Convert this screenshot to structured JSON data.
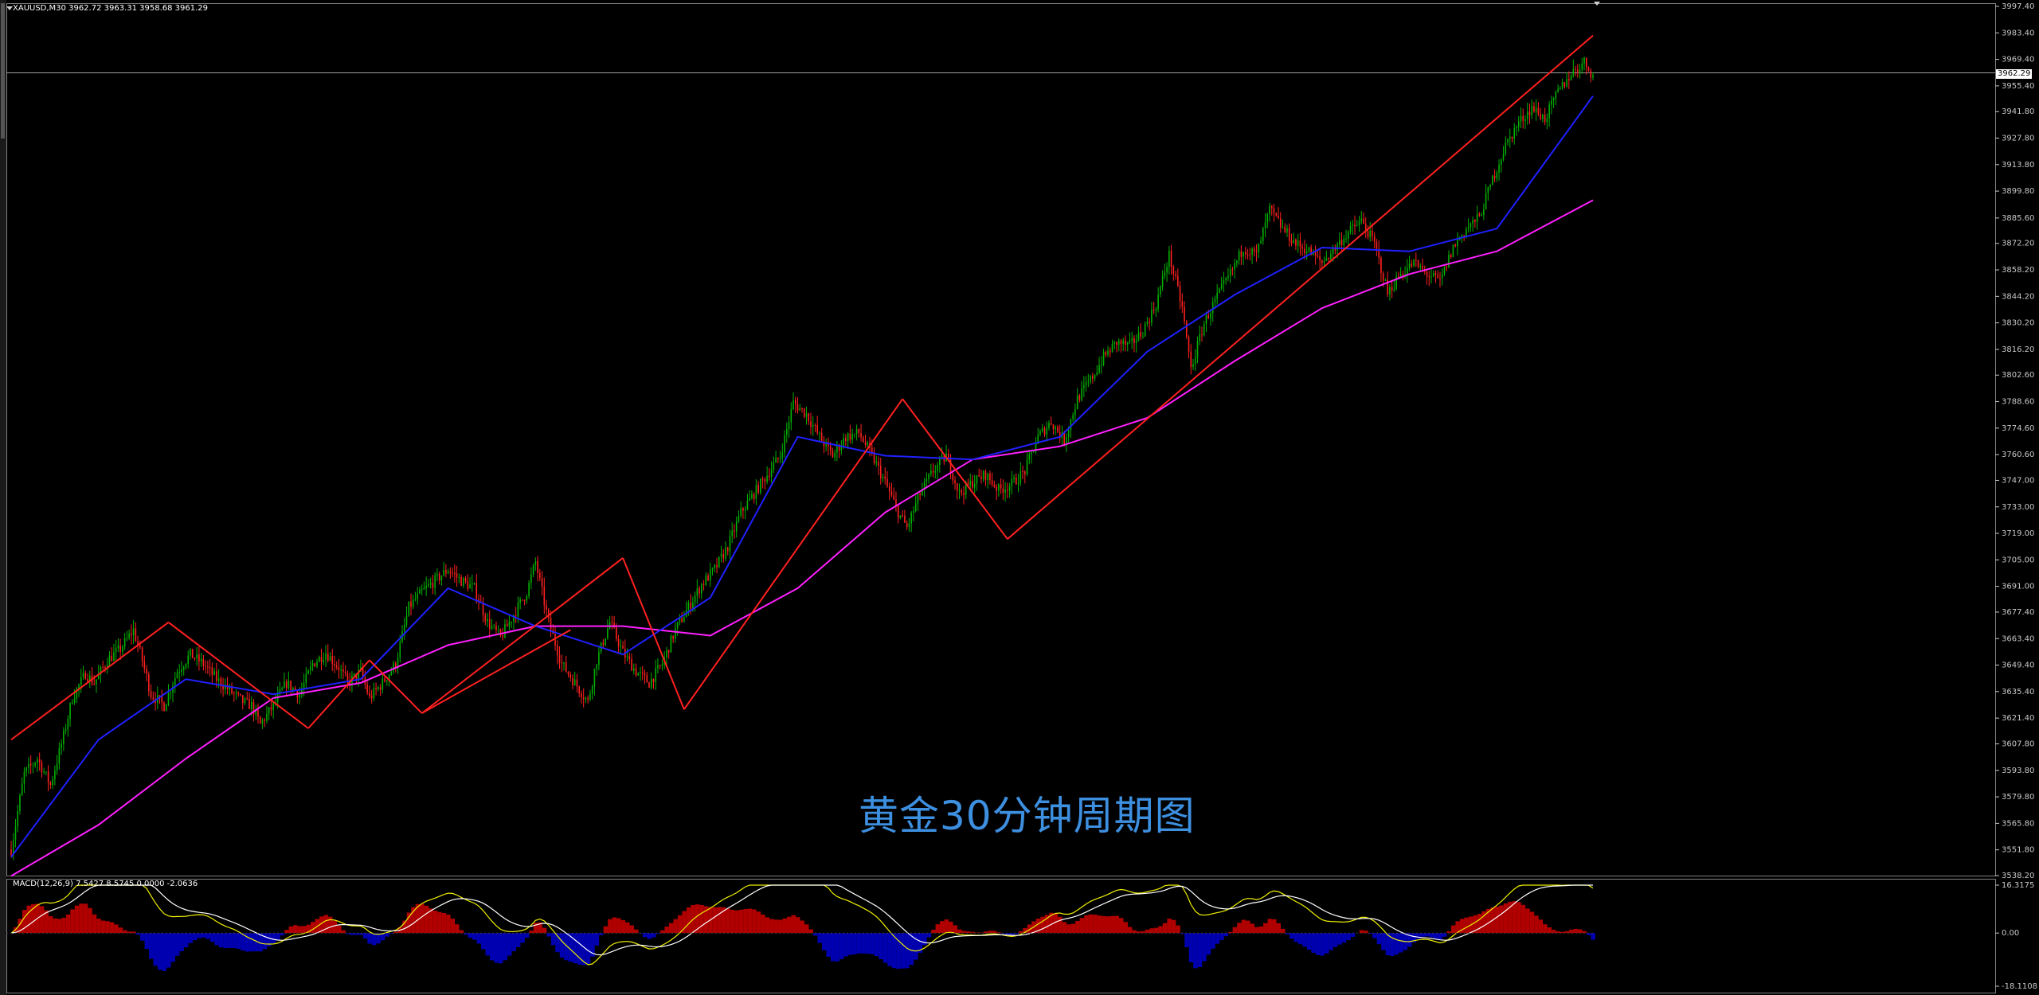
{
  "window": {
    "symbol_header": "XAUUSD,M30  3962.72 3963.31 3958.68 3961.29",
    "current_price_label": "3962.29"
  },
  "watermark": "黄金30分钟周期图",
  "macd_header": "MACD(12,26,9) 7.5427 8.5745 0.0000 -2.0636",
  "colors": {
    "background": "#000000",
    "bull_candle": "#00b000",
    "bear_candle": "#ff2020",
    "ma_fast": "#2020ff",
    "ma_slow": "#ff20ff",
    "trendline": "#ff2020",
    "macd_hist_pos": "#b00000",
    "macd_hist_neg": "#0000b0",
    "macd_line": "#f0f000",
    "signal_line": "#ffffff",
    "watermark": "#3d8fe0"
  },
  "chart_data": [
    {
      "type": "candlestick",
      "symbol": "XAUUSD",
      "timeframe": "M30",
      "ohlc_last": {
        "open": 3962.72,
        "high": 3963.31,
        "low": 3958.68,
        "close": 3961.29
      },
      "y_ticks": [
        3997.4,
        3983.4,
        3969.4,
        3955.4,
        3941.8,
        3927.8,
        3913.8,
        3899.8,
        3885.6,
        3872.2,
        3858.2,
        3844.2,
        3830.2,
        3816.2,
        3802.6,
        3788.6,
        3774.6,
        3760.6,
        3747.0,
        3733.0,
        3719.0,
        3705.0,
        3691.0,
        3677.4,
        3663.4,
        3649.4,
        3635.4,
        3621.4,
        3607.8,
        3593.8,
        3579.8,
        3565.8,
        3551.8,
        3538.2
      ],
      "ylim": [
        3538.2,
        3997.4
      ],
      "current_price": 3962.29,
      "path": [
        [
          0,
          3552
        ],
        [
          3,
          3592
        ],
        [
          6,
          3600
        ],
        [
          9,
          3586
        ],
        [
          12,
          3612
        ],
        [
          14,
          3632
        ],
        [
          17,
          3645
        ],
        [
          19,
          3640
        ],
        [
          22,
          3652
        ],
        [
          25,
          3658
        ],
        [
          28,
          3668
        ],
        [
          30,
          3652
        ],
        [
          32,
          3634
        ],
        [
          35,
          3628
        ],
        [
          38,
          3646
        ],
        [
          41,
          3655
        ],
        [
          44,
          3650
        ],
        [
          47,
          3642
        ],
        [
          50,
          3636
        ],
        [
          53,
          3630
        ],
        [
          55,
          3628
        ],
        [
          57,
          3618
        ],
        [
          60,
          3628
        ],
        [
          63,
          3640
        ],
        [
          66,
          3634
        ],
        [
          69,
          3650
        ],
        [
          72,
          3656
        ],
        [
          75,
          3648
        ],
        [
          77,
          3640
        ],
        [
          80,
          3646
        ],
        [
          82,
          3632
        ],
        [
          85,
          3640
        ],
        [
          88,
          3650
        ],
        [
          91,
          3680
        ],
        [
          94,
          3688
        ],
        [
          97,
          3694
        ],
        [
          100,
          3700
        ],
        [
          103,
          3694
        ],
        [
          106,
          3690
        ],
        [
          109,
          3672
        ],
        [
          112,
          3664
        ],
        [
          115,
          3676
        ],
        [
          118,
          3688
        ],
        [
          120,
          3704
        ],
        [
          123,
          3672
        ],
        [
          126,
          3650
        ],
        [
          129,
          3640
        ],
        [
          132,
          3630
        ],
        [
          134,
          3652
        ],
        [
          137,
          3672
        ],
        [
          140,
          3656
        ],
        [
          143,
          3646
        ],
        [
          146,
          3640
        ],
        [
          149,
          3650
        ],
        [
          152,
          3668
        ],
        [
          155,
          3680
        ],
        [
          158,
          3692
        ],
        [
          161,
          3700
        ],
        [
          164,
          3712
        ],
        [
          167,
          3730
        ],
        [
          170,
          3740
        ],
        [
          173,
          3750
        ],
        [
          176,
          3760
        ],
        [
          179,
          3788
        ],
        [
          182,
          3782
        ],
        [
          185,
          3770
        ],
        [
          188,
          3760
        ],
        [
          191,
          3770
        ],
        [
          194,
          3772
        ],
        [
          197,
          3760
        ],
        [
          200,
          3746
        ],
        [
          203,
          3730
        ],
        [
          205,
          3722
        ],
        [
          208,
          3740
        ],
        [
          211,
          3752
        ],
        [
          214,
          3760
        ],
        [
          217,
          3740
        ],
        [
          220,
          3746
        ],
        [
          223,
          3750
        ],
        [
          226,
          3742
        ],
        [
          229,
          3745
        ],
        [
          232,
          3752
        ],
        [
          235,
          3770
        ],
        [
          238,
          3778
        ],
        [
          241,
          3768
        ],
        [
          244,
          3790
        ],
        [
          247,
          3800
        ],
        [
          250,
          3812
        ],
        [
          253,
          3820
        ],
        [
          256,
          3818
        ],
        [
          259,
          3826
        ],
        [
          262,
          3840
        ],
        [
          265,
          3866
        ],
        [
          268,
          3838
        ],
        [
          270,
          3806
        ],
        [
          273,
          3830
        ],
        [
          276,
          3844
        ],
        [
          279,
          3856
        ],
        [
          282,
          3870
        ],
        [
          285,
          3866
        ],
        [
          288,
          3890
        ],
        [
          291,
          3880
        ],
        [
          294,
          3872
        ],
        [
          297,
          3868
        ],
        [
          300,
          3862
        ],
        [
          303,
          3870
        ],
        [
          306,
          3878
        ],
        [
          309,
          3884
        ],
        [
          312,
          3872
        ],
        [
          315,
          3846
        ],
        [
          318,
          3856
        ],
        [
          321,
          3862
        ],
        [
          324,
          3856
        ],
        [
          327,
          3852
        ],
        [
          330,
          3870
        ],
        [
          333,
          3880
        ],
        [
          336,
          3886
        ],
        [
          339,
          3906
        ],
        [
          342,
          3924
        ],
        [
          345,
          3936
        ],
        [
          348,
          3944
        ],
        [
          351,
          3938
        ],
        [
          354,
          3952
        ],
        [
          357,
          3962
        ],
        [
          360,
          3968
        ],
        [
          362,
          3961
        ]
      ],
      "ma_fast": [
        [
          0,
          3548
        ],
        [
          20,
          3610
        ],
        [
          40,
          3642
        ],
        [
          60,
          3634
        ],
        [
          80,
          3642
        ],
        [
          100,
          3690
        ],
        [
          120,
          3670
        ],
        [
          140,
          3655
        ],
        [
          160,
          3685
        ],
        [
          180,
          3770
        ],
        [
          200,
          3760
        ],
        [
          220,
          3758
        ],
        [
          240,
          3770
        ],
        [
          260,
          3815
        ],
        [
          280,
          3845
        ],
        [
          300,
          3870
        ],
        [
          320,
          3868
        ],
        [
          340,
          3880
        ],
        [
          362,
          3950
        ]
      ],
      "ma_slow": [
        [
          0,
          3538
        ],
        [
          20,
          3565
        ],
        [
          40,
          3600
        ],
        [
          60,
          3632
        ],
        [
          80,
          3640
        ],
        [
          100,
          3660
        ],
        [
          120,
          3670
        ],
        [
          140,
          3670
        ],
        [
          160,
          3665
        ],
        [
          180,
          3690
        ],
        [
          200,
          3730
        ],
        [
          220,
          3758
        ],
        [
          240,
          3765
        ],
        [
          260,
          3780
        ],
        [
          280,
          3810
        ],
        [
          300,
          3838
        ],
        [
          320,
          3856
        ],
        [
          340,
          3868
        ],
        [
          362,
          3895
        ]
      ],
      "trendlines": [
        [
          [
            0,
            3610
          ],
          [
            36,
            3672
          ]
        ],
        [
          [
            36,
            3672
          ],
          [
            68,
            3616
          ]
        ],
        [
          [
            68,
            3616
          ],
          [
            82,
            3652
          ]
        ],
        [
          [
            82,
            3652
          ],
          [
            94,
            3624
          ]
        ],
        [
          [
            94,
            3624
          ],
          [
            140,
            3706
          ]
        ],
        [
          [
            140,
            3706
          ],
          [
            154,
            3626
          ]
        ],
        [
          [
            154,
            3626
          ],
          [
            204,
            3790
          ]
        ],
        [
          [
            204,
            3790
          ],
          [
            228,
            3716
          ]
        ],
        [
          [
            228,
            3716
          ],
          [
            362,
            3982
          ]
        ],
        [
          [
            94,
            3624
          ],
          [
            128,
            3668
          ]
        ]
      ]
    },
    {
      "type": "macd",
      "params": "12,26,9",
      "values": {
        "macd": 7.5427,
        "signal": 8.5745,
        "hist_a": 0.0,
        "hist_b": -2.0636
      },
      "y_ticks": [
        16.3175,
        0.0,
        -18.1108
      ],
      "ylim": [
        -18.1108,
        16.3175
      ]
    }
  ]
}
